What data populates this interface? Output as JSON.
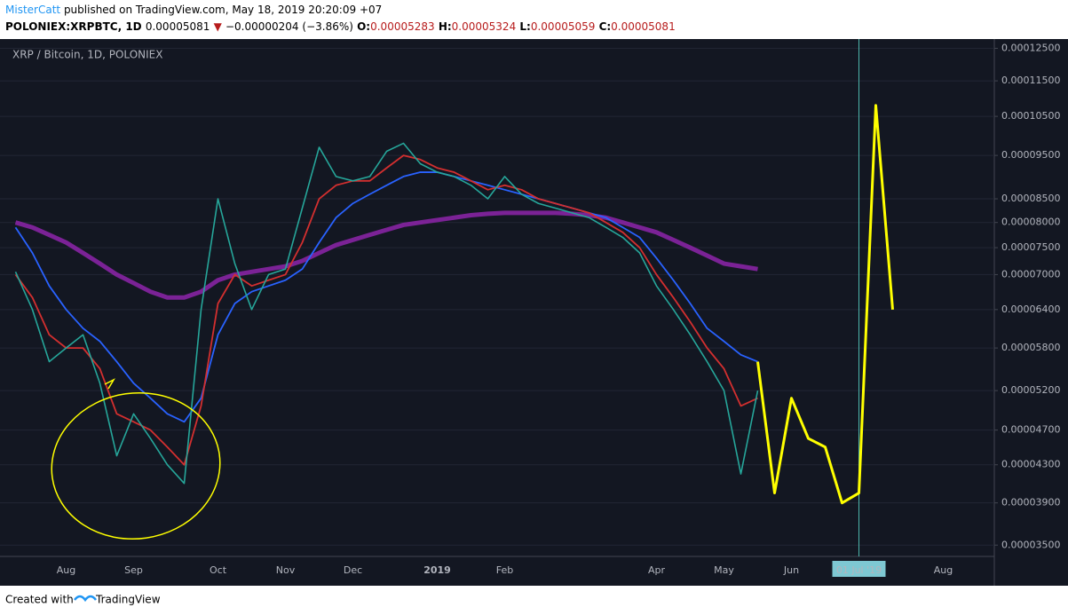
{
  "header": {
    "author": "MisterCatt",
    "published": "published on TradingView.com, May 18, 2019 20:20:09 +07",
    "symbol": "POLONIEX:XRPBTC, 1D",
    "last": "0.00005081",
    "arrow": "▼",
    "change": "−0.00000204 (−3.86%)",
    "open_label": "O:",
    "open": "0.00005283",
    "high_label": "H:",
    "high": "0.00005324",
    "low_label": "L:",
    "low": "0.00005059",
    "close_label": "C:",
    "close": "0.00005081"
  },
  "footer": {
    "text": "Created with",
    "brand": "TradingView"
  },
  "chart_data": {
    "type": "line",
    "title": "XRP / Bitcoin, 1D, POLONIEX",
    "log_scale": true,
    "grid": true,
    "categories": [
      null,
      null,
      null,
      "Aug",
      null,
      null,
      null,
      "Sep",
      null,
      null,
      null,
      null,
      "Oct",
      null,
      null,
      null,
      "Nov",
      null,
      null,
      null,
      "Dec",
      null,
      null,
      null,
      null,
      "2019",
      null,
      null,
      null,
      "Feb",
      null,
      null,
      null,
      null,
      null,
      null,
      null,
      null,
      "Apr",
      null,
      null,
      null,
      "May",
      null,
      null,
      null,
      "Jun",
      null,
      null,
      null,
      "01 Jul '19",
      null,
      null,
      null,
      null,
      "Aug",
      null,
      null
    ],
    "ylim": [
      3.4e-05,
      0.000128
    ],
    "yticks": [
      {
        "value": 0.000125,
        "label": "0.00012500"
      },
      {
        "value": 0.000115,
        "label": "0.00011500"
      },
      {
        "value": 0.000105,
        "label": "0.00010500"
      },
      {
        "value": 9.5e-05,
        "label": "0.00009500"
      },
      {
        "value": 8.5e-05,
        "label": "0.00008500"
      },
      {
        "value": 8e-05,
        "label": "0.00008000"
      },
      {
        "value": 7.5e-05,
        "label": "0.00007500"
      },
      {
        "value": 7e-05,
        "label": "0.00007000"
      },
      {
        "value": 6.4e-05,
        "label": "0.00006400"
      },
      {
        "value": 5.8e-05,
        "label": "0.00005800"
      },
      {
        "value": 5.2e-05,
        "label": "0.00005200"
      },
      {
        "value": 4.7e-05,
        "label": "0.00004700"
      },
      {
        "value": 4.3e-05,
        "label": "0.00004300"
      },
      {
        "value": 3.9e-05,
        "label": "0.00003900"
      },
      {
        "value": 3.5e-05,
        "label": "0.00003500"
      }
    ],
    "series": [
      {
        "color": "#8e24aa",
        "values": [
          8e-05,
          7.9e-05,
          7.75e-05,
          7.6e-05,
          7.4e-05,
          7.2e-05,
          7e-05,
          6.85e-05,
          6.7e-05,
          6.6e-05,
          6.6e-05,
          6.7e-05,
          6.9e-05,
          7e-05,
          7.05e-05,
          7.1e-05,
          7.15e-05,
          7.25e-05,
          7.4e-05,
          7.55e-05,
          7.65e-05,
          7.75e-05,
          7.85e-05,
          7.95e-05,
          8e-05,
          8.05e-05,
          8.1e-05,
          8.15e-05,
          8.18e-05,
          8.2e-05,
          8.2e-05,
          8.2e-05,
          8.2e-05,
          8.18e-05,
          8.15e-05,
          8.1e-05,
          8e-05,
          7.9e-05,
          7.8e-05,
          7.65e-05,
          7.5e-05,
          7.35e-05,
          7.2e-05,
          7.15e-05,
          7.1e-05,
          null,
          null,
          null,
          null,
          null,
          null,
          null,
          null,
          null,
          null,
          null,
          null,
          null
        ]
      },
      {
        "color": "#2962ff",
        "values": [
          7.9e-05,
          7.4e-05,
          6.8e-05,
          6.4e-05,
          6.1e-05,
          5.9e-05,
          5.6e-05,
          5.3e-05,
          5.1e-05,
          4.9e-05,
          4.8e-05,
          5.1e-05,
          6e-05,
          6.5e-05,
          6.7e-05,
          6.8e-05,
          6.9e-05,
          7.1e-05,
          7.6e-05,
          8.1e-05,
          8.4e-05,
          8.6e-05,
          8.8e-05,
          9e-05,
          9.1e-05,
          9.1e-05,
          9e-05,
          8.9e-05,
          8.8e-05,
          8.7e-05,
          8.6e-05,
          8.5e-05,
          8.4e-05,
          8.3e-05,
          8.2e-05,
          8.1e-05,
          7.9e-05,
          7.7e-05,
          7.3e-05,
          6.9e-05,
          6.5e-05,
          6.1e-05,
          5.9e-05,
          5.7e-05,
          5.6e-05,
          null,
          null,
          null,
          null,
          null,
          null,
          null,
          null,
          null,
          null,
          null,
          null,
          null
        ]
      },
      {
        "color": "#d32f2f",
        "values": [
          7e-05,
          6.6e-05,
          6e-05,
          5.8e-05,
          5.8e-05,
          5.5e-05,
          4.9e-05,
          4.8e-05,
          4.7e-05,
          4.5e-05,
          4.3e-05,
          5e-05,
          6.5e-05,
          7e-05,
          6.8e-05,
          6.9e-05,
          7e-05,
          7.6e-05,
          8.5e-05,
          8.8e-05,
          8.9e-05,
          8.9e-05,
          9.2e-05,
          9.5e-05,
          9.4e-05,
          9.2e-05,
          9.1e-05,
          8.9e-05,
          8.7e-05,
          8.8e-05,
          8.7e-05,
          8.5e-05,
          8.4e-05,
          8.3e-05,
          8.2e-05,
          8e-05,
          7.8e-05,
          7.5e-05,
          7e-05,
          6.6e-05,
          6.2e-05,
          5.8e-05,
          5.5e-05,
          5e-05,
          5.1e-05,
          null,
          null,
          null,
          null,
          null,
          null,
          null,
          null,
          null,
          null,
          null,
          null,
          null
        ]
      },
      {
        "color": "#26a69a",
        "values": [
          7.05e-05,
          6.4e-05,
          5.6e-05,
          5.8e-05,
          6e-05,
          5.3e-05,
          4.4e-05,
          4.9e-05,
          4.6e-05,
          4.3e-05,
          4.1e-05,
          6.4e-05,
          8.5e-05,
          7.2e-05,
          6.4e-05,
          7e-05,
          7.1e-05,
          8.3e-05,
          9.7e-05,
          9e-05,
          8.9e-05,
          9e-05,
          9.6e-05,
          9.8e-05,
          9.3e-05,
          9.1e-05,
          9e-05,
          8.8e-05,
          8.5e-05,
          9e-05,
          8.6e-05,
          8.4e-05,
          8.3e-05,
          8.2e-05,
          8.1e-05,
          7.9e-05,
          7.7e-05,
          7.4e-05,
          6.8e-05,
          6.4e-05,
          6e-05,
          5.6e-05,
          5.2e-05,
          4.2e-05,
          5.2e-05,
          null,
          null,
          null,
          null,
          null,
          null,
          null,
          null,
          null,
          null,
          null,
          null,
          null
        ]
      },
      {
        "color": "#ffff00",
        "values": [
          null,
          null,
          null,
          null,
          null,
          null,
          null,
          null,
          null,
          null,
          null,
          null,
          null,
          null,
          null,
          null,
          null,
          null,
          null,
          null,
          null,
          null,
          null,
          null,
          null,
          null,
          null,
          null,
          null,
          null,
          null,
          null,
          null,
          null,
          null,
          null,
          null,
          null,
          null,
          null,
          null,
          null,
          null,
          null,
          5.6e-05,
          4e-05,
          5.1e-05,
          4.6e-05,
          4.5e-05,
          3.9e-05,
          4e-05,
          0.000108,
          6.4e-05,
          null,
          null,
          null,
          null,
          null
        ]
      }
    ]
  }
}
